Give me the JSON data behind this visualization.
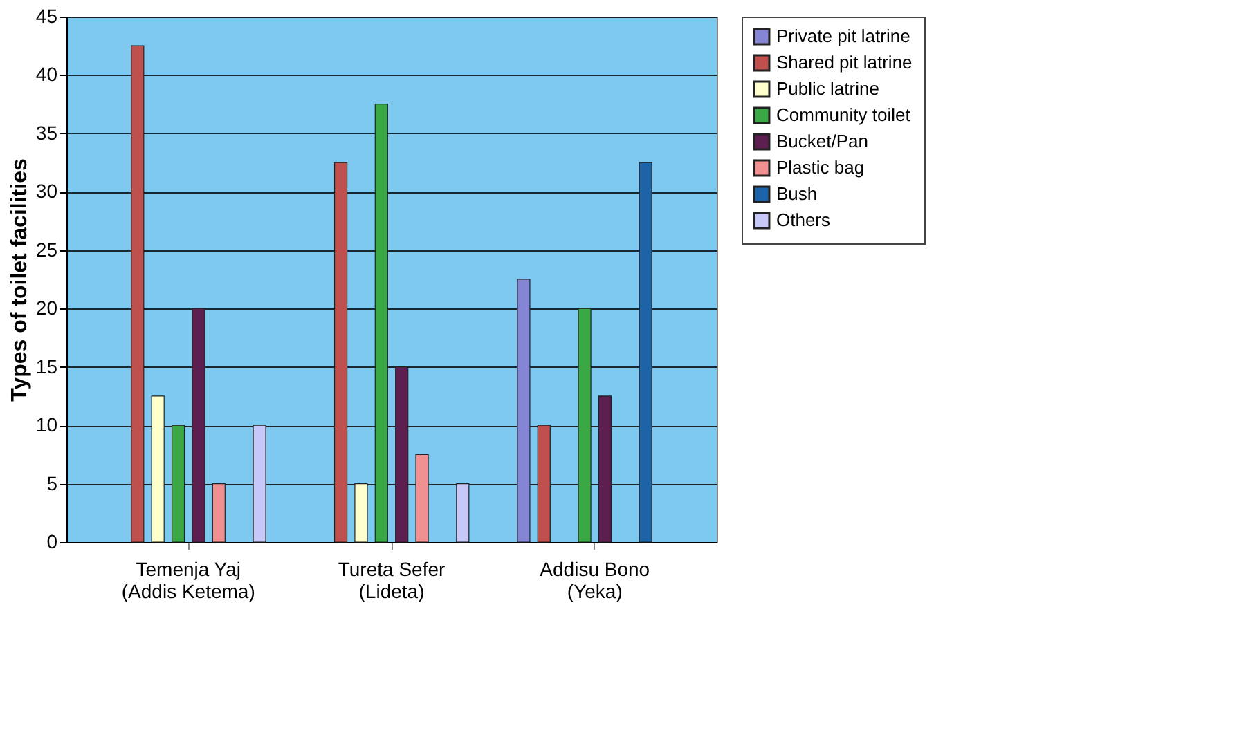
{
  "chart_data": {
    "type": "bar",
    "ylabel": "Types of toilet facilities",
    "categories": [
      "Temenja Yaj (Addis Ketema)",
      "Tureta Sefer (Lideta)",
      "Addisu Bono (Yeka)"
    ],
    "series": [
      {
        "name": "Private pit latrine",
        "color": "#8585d6",
        "values": [
          null,
          null,
          22.5
        ]
      },
      {
        "name": "Shared pit latrine",
        "color": "#c0504d",
        "values": [
          42.5,
          32.5,
          10
        ]
      },
      {
        "name": "Public latrine",
        "color": "#ffffcc",
        "values": [
          12.5,
          5,
          null
        ]
      },
      {
        "name": "Community toilet",
        "color": "#3aa845",
        "values": [
          10,
          37.5,
          20
        ]
      },
      {
        "name": "Bucket/Pan",
        "color": "#5c1f4f",
        "values": [
          20,
          15,
          12.5
        ]
      },
      {
        "name": "Plastic bag",
        "color": "#f09090",
        "values": [
          5,
          7.5,
          null
        ]
      },
      {
        "name": "Bush",
        "color": "#1c63a8",
        "values": [
          null,
          null,
          32.5
        ]
      },
      {
        "name": "Others",
        "color": "#c8c8f8",
        "values": [
          10,
          5,
          null
        ]
      }
    ],
    "ylim": [
      0,
      45
    ],
    "yticks": [
      0,
      5,
      10,
      15,
      20,
      25,
      30,
      35,
      40,
      45
    ],
    "grid": "y",
    "legend": "right"
  }
}
